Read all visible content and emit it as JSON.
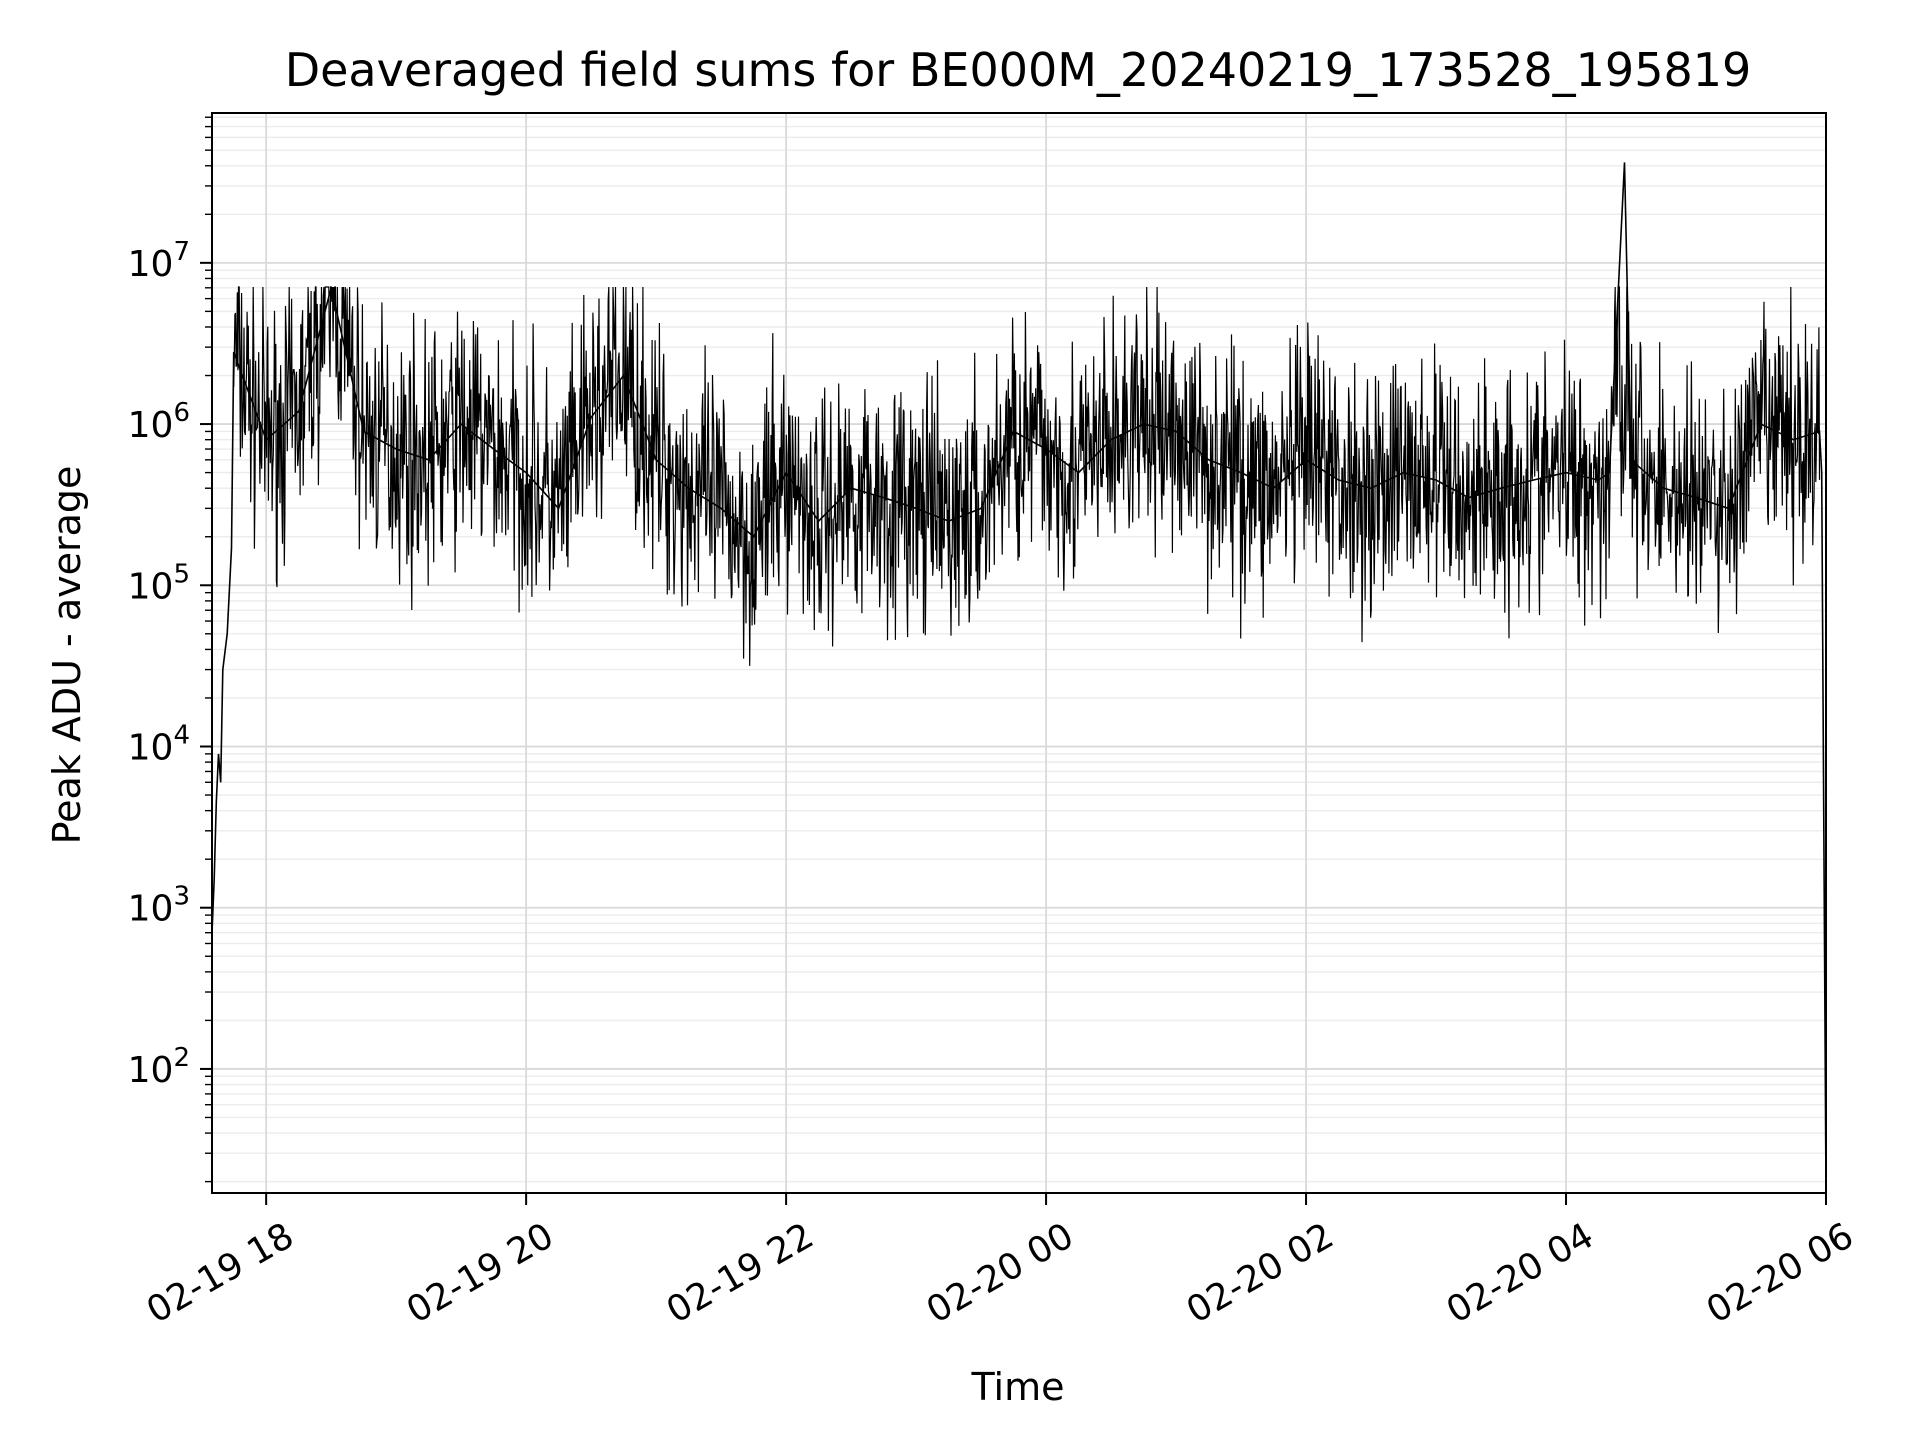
{
  "chart_data": {
    "type": "line",
    "title": "Deaveraged field sums for BE000M_20240219_173528_195819",
    "xlabel": "Time",
    "ylabel": "Peak ADU - average",
    "yscale": "log",
    "xlim": [
      "2024-02-19 17:35",
      "2024-02-20 06:00"
    ],
    "ylim": [
      17,
      85000000
    ],
    "grid": true,
    "grid_minor": true,
    "x_ticks": [
      {
        "value": "2024-02-19 18:00",
        "label": "02-19 18"
      },
      {
        "value": "2024-02-19 20:00",
        "label": "02-19 20"
      },
      {
        "value": "2024-02-19 22:00",
        "label": "02-19 22"
      },
      {
        "value": "2024-02-20 00:00",
        "label": "02-20 00"
      },
      {
        "value": "2024-02-20 02:00",
        "label": "02-20 02"
      },
      {
        "value": "2024-02-20 04:00",
        "label": "02-20 04"
      },
      {
        "value": "2024-02-20 06:00",
        "label": "02-20 06"
      }
    ],
    "y_ticks": [
      {
        "value": 100,
        "base": "10",
        "exp": "2"
      },
      {
        "value": 1000,
        "base": "10",
        "exp": "3"
      },
      {
        "value": 10000,
        "base": "10",
        "exp": "4"
      },
      {
        "value": 100000,
        "base": "10",
        "exp": "5"
      },
      {
        "value": 1000000,
        "base": "10",
        "exp": "6"
      },
      {
        "value": 10000000,
        "base": "10",
        "exp": "7"
      }
    ],
    "line_color": "#000000",
    "series": [
      {
        "x": [
          "2024-02-19 17:35",
          "2024-02-19 17:36",
          "2024-02-19 17:37",
          "2024-02-19 17:38",
          "2024-02-19 17:39",
          "2024-02-19 17:40",
          "2024-02-19 17:42",
          "2024-02-19 17:44",
          "2024-02-19 17:45",
          "2024-02-19 18:00",
          "2024-02-19 18:15",
          "2024-02-19 18:30",
          "2024-02-19 18:45",
          "2024-02-19 19:00",
          "2024-02-19 19:15",
          "2024-02-19 19:30",
          "2024-02-19 19:45",
          "2024-02-19 20:00",
          "2024-02-19 20:15",
          "2024-02-19 20:30",
          "2024-02-19 20:45",
          "2024-02-19 21:00",
          "2024-02-19 21:15",
          "2024-02-19 21:30",
          "2024-02-19 21:45",
          "2024-02-19 22:00",
          "2024-02-19 22:15",
          "2024-02-19 22:30",
          "2024-02-19 22:45",
          "2024-02-19 23:00",
          "2024-02-19 23:15",
          "2024-02-19 23:30",
          "2024-02-19 23:45",
          "2024-02-20 00:00",
          "2024-02-20 00:15",
          "2024-02-20 00:30",
          "2024-02-20 00:45",
          "2024-02-20 01:00",
          "2024-02-20 01:15",
          "2024-02-20 01:30",
          "2024-02-20 01:45",
          "2024-02-20 02:00",
          "2024-02-20 02:15",
          "2024-02-20 02:30",
          "2024-02-20 02:45",
          "2024-02-20 03:00",
          "2024-02-20 03:15",
          "2024-02-20 03:30",
          "2024-02-20 03:45",
          "2024-02-20 04:00",
          "2024-02-20 04:15",
          "2024-02-20 04:20",
          "2024-02-20 04:27",
          "2024-02-20 04:30",
          "2024-02-20 04:45",
          "2024-02-20 05:00",
          "2024-02-20 05:15",
          "2024-02-20 05:30",
          "2024-02-20 05:45",
          "2024-02-20 05:57",
          "2024-02-20 05:58",
          "2024-02-20 06:00"
        ],
        "y": [
          700,
          1500,
          4500,
          9000,
          6000,
          30000,
          50000,
          170000,
          2800000,
          800000,
          1200000,
          7000000,
          900000,
          700000,
          600000,
          1000000,
          700000,
          500000,
          300000,
          1100000,
          2000000,
          600000,
          400000,
          300000,
          200000,
          500000,
          250000,
          400000,
          350000,
          300000,
          250000,
          300000,
          900000,
          700000,
          500000,
          800000,
          1000000,
          900000,
          600000,
          500000,
          400000,
          600000,
          450000,
          400000,
          500000,
          450000,
          350000,
          400000,
          450000,
          500000,
          450000,
          500000,
          42000000,
          600000,
          400000,
          350000,
          300000,
          1000000,
          800000,
          900000,
          500000,
          17
        ]
      }
    ]
  }
}
